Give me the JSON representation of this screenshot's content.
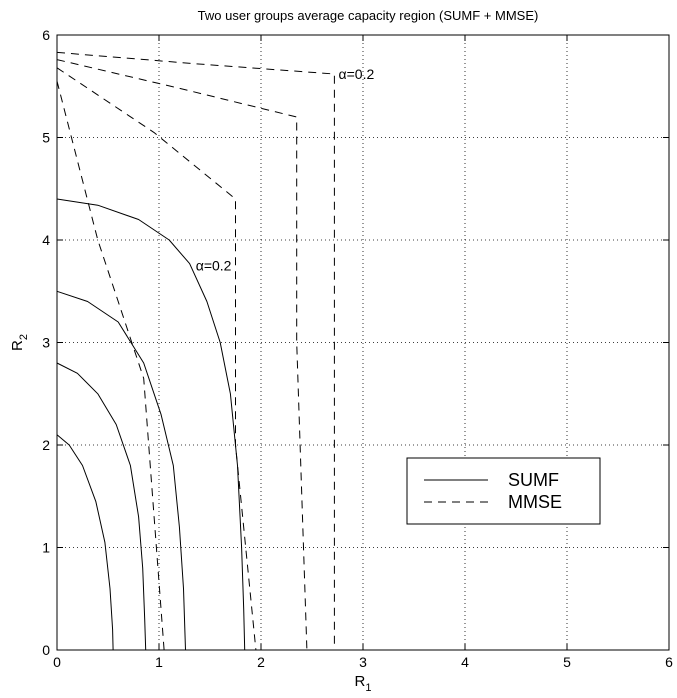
{
  "chart_data": {
    "type": "line",
    "title": "Two user groups average capacity region (SUMF + MMSE)",
    "xlabel": "R",
    "xlabel_sub": "1",
    "ylabel": "R",
    "ylabel_sub": "2",
    "xlim": [
      0,
      6
    ],
    "ylim": [
      0,
      6
    ],
    "xticks": [
      "0",
      "1",
      "2",
      "3",
      "4",
      "5",
      "6"
    ],
    "yticks": [
      "0",
      "1",
      "2",
      "3",
      "4",
      "5",
      "6"
    ],
    "grid": true,
    "legend_position": "lower-right",
    "legend": [
      {
        "label": "SUMF",
        "style": "solid"
      },
      {
        "label": "MMSE",
        "style": "dashed"
      }
    ],
    "annotations": [
      {
        "text": "α=0.2",
        "x": 1.36,
        "y": 3.75
      },
      {
        "text": "α=0.2",
        "x": 2.76,
        "y": 5.62
      }
    ],
    "series": [
      {
        "group": "SUMF",
        "style": "solid",
        "points": [
          [
            0,
            2.1
          ],
          [
            0.12,
            2.0
          ],
          [
            0.25,
            1.8
          ],
          [
            0.38,
            1.45
          ],
          [
            0.47,
            1.05
          ],
          [
            0.52,
            0.6
          ],
          [
            0.545,
            0.2
          ],
          [
            0.55,
            0
          ]
        ]
      },
      {
        "group": "SUMF",
        "style": "solid",
        "points": [
          [
            0,
            2.8
          ],
          [
            0.2,
            2.7
          ],
          [
            0.4,
            2.5
          ],
          [
            0.58,
            2.2
          ],
          [
            0.72,
            1.8
          ],
          [
            0.8,
            1.3
          ],
          [
            0.84,
            0.8
          ],
          [
            0.86,
            0.3
          ],
          [
            0.87,
            0
          ]
        ]
      },
      {
        "group": "SUMF",
        "style": "solid",
        "points": [
          [
            0,
            3.5
          ],
          [
            0.3,
            3.4
          ],
          [
            0.6,
            3.2
          ],
          [
            0.85,
            2.8
          ],
          [
            1.02,
            2.3
          ],
          [
            1.14,
            1.8
          ],
          [
            1.2,
            1.2
          ],
          [
            1.24,
            0.6
          ],
          [
            1.26,
            0
          ]
        ]
      },
      {
        "group": "SUMF",
        "style": "solid",
        "points": [
          [
            0,
            4.4
          ],
          [
            0.4,
            4.34
          ],
          [
            0.8,
            4.2
          ],
          [
            1.1,
            4.0
          ],
          [
            1.3,
            3.77
          ],
          [
            1.47,
            3.4
          ],
          [
            1.6,
            3.0
          ],
          [
            1.7,
            2.5
          ],
          [
            1.77,
            1.8
          ],
          [
            1.81,
            1.0
          ],
          [
            1.83,
            0.4
          ],
          [
            1.84,
            0
          ]
        ]
      },
      {
        "group": "MMSE",
        "style": "dashed",
        "points": [
          [
            0,
            5.55
          ],
          [
            0.4,
            4.0
          ],
          [
            0.85,
            2.65
          ],
          [
            1.05,
            0.0
          ]
        ]
      },
      {
        "group": "MMSE",
        "style": "dashed",
        "points": [
          [
            0,
            5.68
          ],
          [
            0.95,
            5.05
          ],
          [
            1.75,
            4.4
          ],
          [
            1.75,
            2.0
          ],
          [
            1.95,
            0.0
          ]
        ]
      },
      {
        "group": "MMSE",
        "style": "dashed",
        "points": [
          [
            0,
            5.76
          ],
          [
            1.2,
            5.48
          ],
          [
            2.35,
            5.2
          ],
          [
            2.35,
            3.0
          ],
          [
            2.45,
            0.0
          ]
        ]
      },
      {
        "group": "MMSE",
        "style": "dashed",
        "points": [
          [
            0,
            5.83
          ],
          [
            1.35,
            5.72
          ],
          [
            2.72,
            5.62
          ],
          [
            2.72,
            0.0
          ]
        ]
      }
    ]
  }
}
